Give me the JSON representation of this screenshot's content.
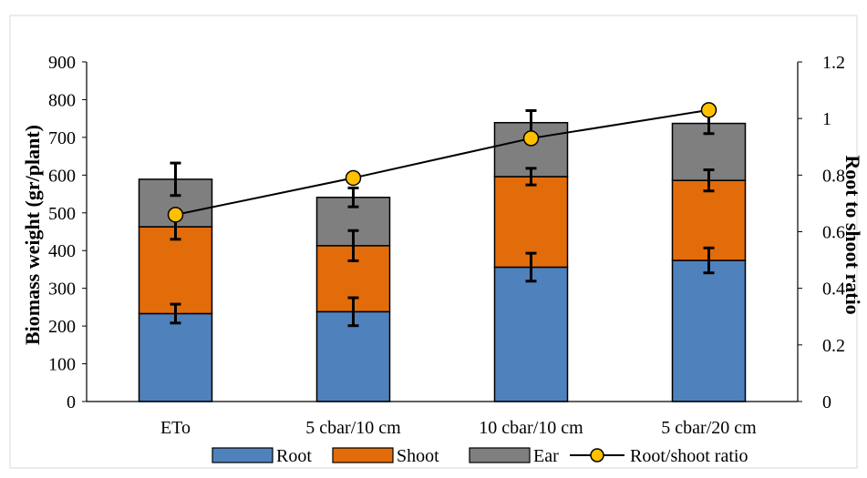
{
  "chart_data": {
    "type": "bar",
    "stacked": true,
    "categories": [
      "ETo",
      "5 cbar/10 cm",
      "10 cbar/10 cm",
      "5 cbar/20 cm"
    ],
    "ylabel": "Biomass weight (gr/plant)",
    "ylabel2": "Root to shoot ratio",
    "ylim": [
      0,
      900
    ],
    "ylim2": [
      0,
      1.2
    ],
    "yticks": [
      0,
      100,
      200,
      300,
      400,
      500,
      600,
      700,
      800,
      900
    ],
    "yticks2": [
      "0",
      "0.2",
      "0.4",
      "0.6",
      "0.8",
      "1",
      "1.2"
    ],
    "grid": false,
    "legend_position": "bottom",
    "series": [
      {
        "name": "Root",
        "color": "#4F81BD",
        "values": [
          233,
          238,
          356,
          374
        ],
        "errors": [
          25,
          37,
          37,
          33
        ]
      },
      {
        "name": "Shoot",
        "color": "#E36C0A",
        "values": [
          230,
          175,
          240,
          212
        ],
        "errors": [
          33,
          40,
          22,
          28
        ]
      },
      {
        "name": "Ear",
        "color": "#7F7F7F",
        "values": [
          126,
          128,
          143,
          151
        ],
        "errors": [
          43,
          25,
          32,
          27
        ]
      }
    ],
    "line_series": {
      "name": "Root/shoot ratio",
      "axis": "right",
      "values": [
        0.66,
        0.79,
        0.93,
        1.03
      ],
      "marker_color": "#FFC000",
      "line_color": "#000000"
    }
  }
}
